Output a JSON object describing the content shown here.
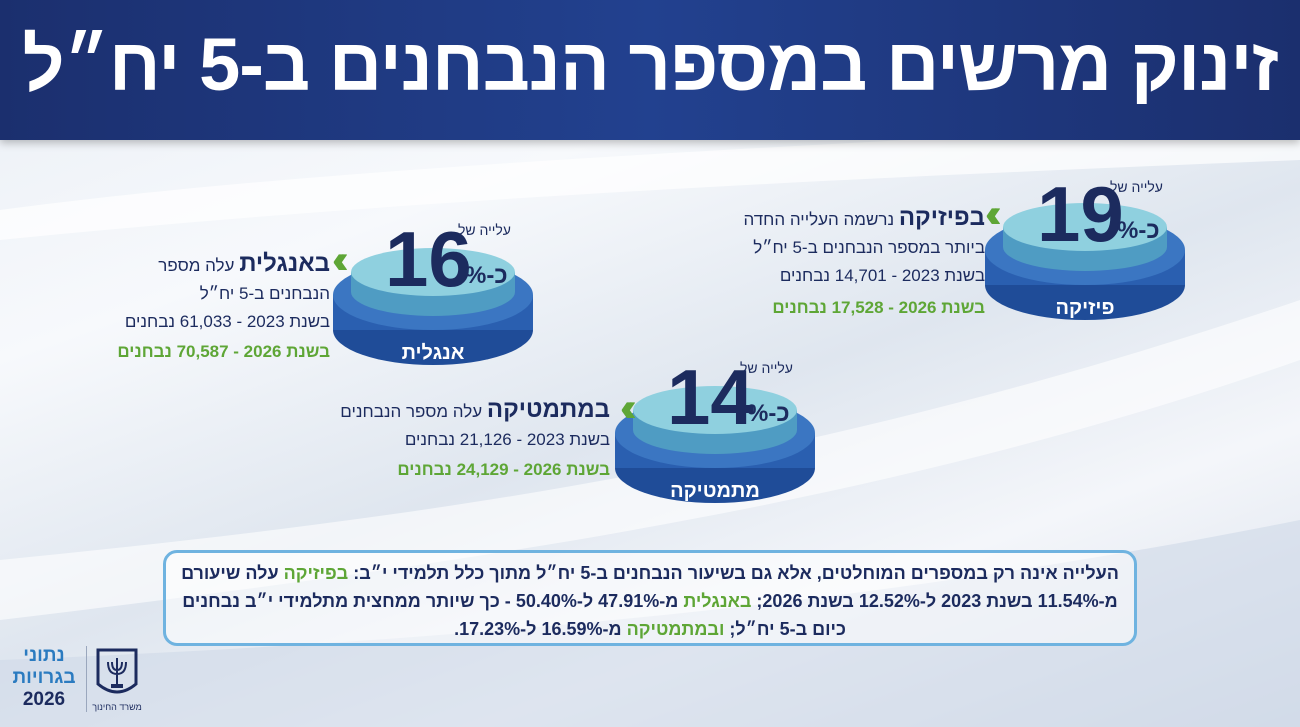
{
  "header": {
    "title": "זינוק מרשים במספר הנבחנים ב-5 יח״ל"
  },
  "subjects": [
    {
      "disc_label": "פיזיקה",
      "rise_label": "עלייה של",
      "rise_value": "19",
      "rise_unit": "כ-%",
      "name": "בפיזיקה",
      "description": [
        "נרשמה העלייה החדה",
        "ביותר במספר הנבחנים ב-5 יח״ל"
      ],
      "year_2023": "בשנת 2023 - 14,701 נבחנים",
      "year_2026": "בשנת 2026 - 17,528 נבחנים"
    },
    {
      "disc_label": "אנגלית",
      "rise_label": "עלייה של",
      "rise_value": "16",
      "rise_unit": "כ-%",
      "name": "באנגלית",
      "description": [
        "עלה מספר",
        "הנבחנים ב-5 יח״ל"
      ],
      "year_2023": "בשנת 2023 - 61,033 נבחנים",
      "year_2026": "בשנת 2026 - 70,587 נבחנים"
    },
    {
      "disc_label": "מתמטיקה",
      "rise_label": "עלייה של",
      "rise_value": "14",
      "rise_unit": "כ-%",
      "name": "במתמטיקה",
      "description": [
        "עלה מספר הנבחנים"
      ],
      "year_2023": "בשנת 2023 - 21,126 נבחנים",
      "year_2026": "בשנת 2026 - 24,129 נבחנים"
    }
  ],
  "summary": [
    {
      "text": "העלייה אינה רק במספרים המוחלטים, אלא גם בשיעור הנבחנים ב-5 יח״ל מתוך כלל תלמידי י״ב: "
    },
    {
      "text": "בפיזיקה",
      "color": "#5ea636"
    },
    {
      "text": " עלה שיעורם מ-11.54% בשנת 2023 ל-12.52% בשנת 2026; "
    },
    {
      "text": "באנגלית",
      "color": "#5ea636"
    },
    {
      "text": " מ-47.91% ל-50.40% - כך שיותר ממחצית מתלמידי י״ב נבחנים כיום ב-5 יח״ל; "
    },
    {
      "text": "ובמתמטיקה",
      "color": "#5ea636"
    },
    {
      "text": " מ-16.59% ל-17.23%."
    }
  ],
  "footer": {
    "brand": [
      "נתוני",
      "בגרויות",
      "2026"
    ],
    "ministry": "משרד החינוך"
  }
}
